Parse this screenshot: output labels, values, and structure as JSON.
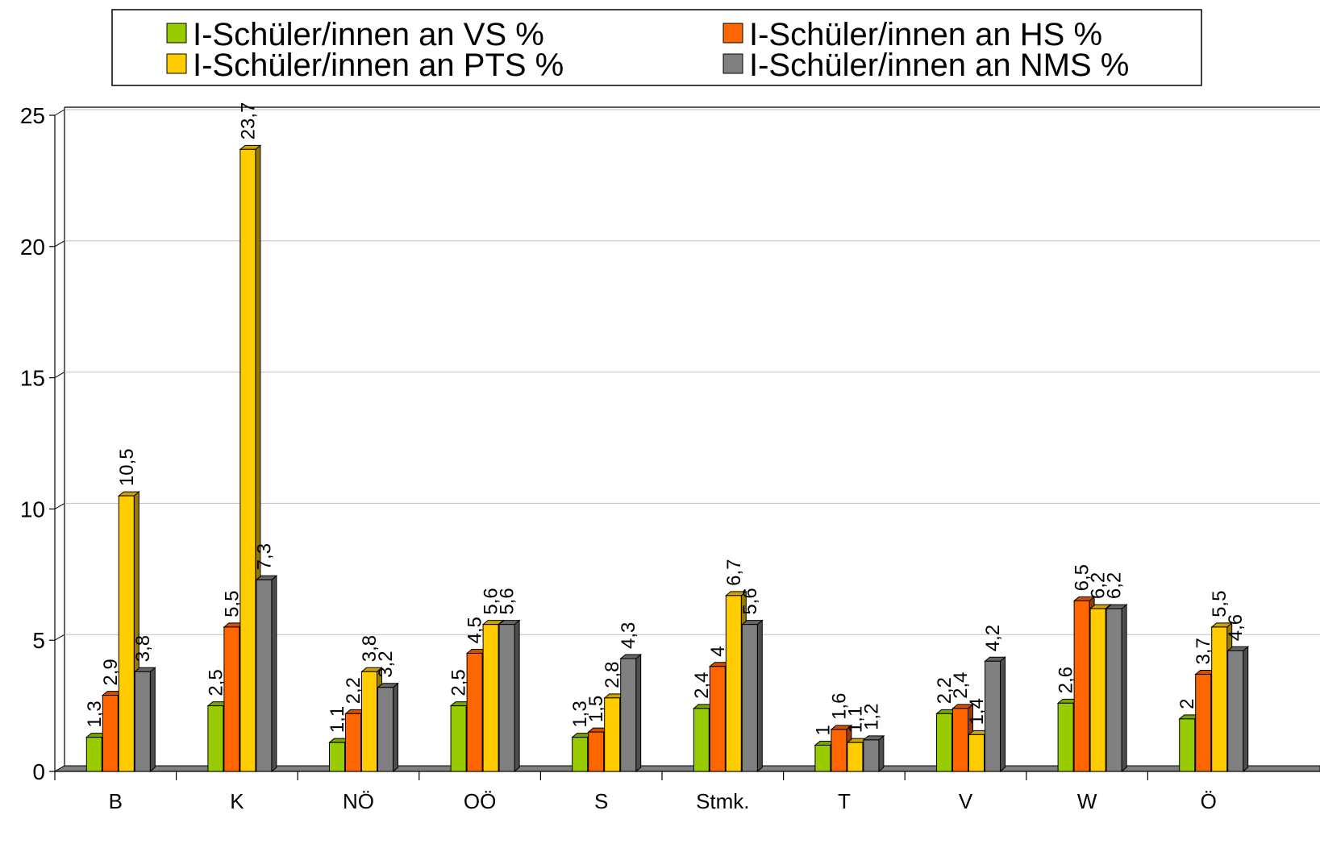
{
  "chart_data": {
    "type": "bar",
    "categories": [
      "B",
      "K",
      "NÖ",
      "OÖ",
      "S",
      "Stmk.",
      "T",
      "V",
      "W",
      "Ö"
    ],
    "series": [
      {
        "name": "I-Schüler/innen an VS %",
        "color": "#99cc00",
        "values": [
          1.3,
          2.5,
          1.1,
          2.5,
          1.3,
          2.4,
          1,
          2.2,
          2.6,
          2
        ],
        "value_labels": [
          "1,3",
          "2,5",
          "1,1",
          "2,5",
          "1,3",
          "2,4",
          "1",
          "2,2",
          "2,6",
          "2"
        ]
      },
      {
        "name": "I-Schüler/innen an HS %",
        "color": "#ff6600",
        "values": [
          2.9,
          5.5,
          2.2,
          4.5,
          1.5,
          4,
          1.6,
          2.4,
          6.5,
          3.7
        ],
        "value_labels": [
          "2,9",
          "5,5",
          "2,2",
          "4,5",
          "1,5",
          "4",
          "1,6",
          "2,4",
          "6,5",
          "3,7"
        ]
      },
      {
        "name": "I-Schüler/innen an PTS %",
        "color": "#ffcc00",
        "values": [
          10.5,
          23.7,
          3.8,
          5.6,
          2.8,
          6.7,
          1.1,
          1.4,
          6.2,
          5.5
        ],
        "value_labels": [
          "10,5",
          "23,7",
          "3,8",
          "5,6",
          "2,8",
          "6,7",
          "1,1",
          "1,4",
          "6,2",
          "5,5"
        ]
      },
      {
        "name": "I-Schüler/innen an NMS %",
        "color": "#808080",
        "values": [
          3.8,
          7.3,
          3.2,
          5.6,
          4.3,
          5.6,
          1.2,
          4.2,
          6.2,
          4.6
        ],
        "value_labels": [
          "3,8",
          "7,3",
          "3,2",
          "5,6",
          "4,3",
          "5,6",
          "1,2",
          "4,2",
          "6,2",
          "4,6"
        ]
      }
    ],
    "ylim": [
      0,
      25
    ],
    "yticks": [
      0,
      5,
      10,
      15,
      20,
      25
    ],
    "grid": true,
    "legend": "top"
  }
}
